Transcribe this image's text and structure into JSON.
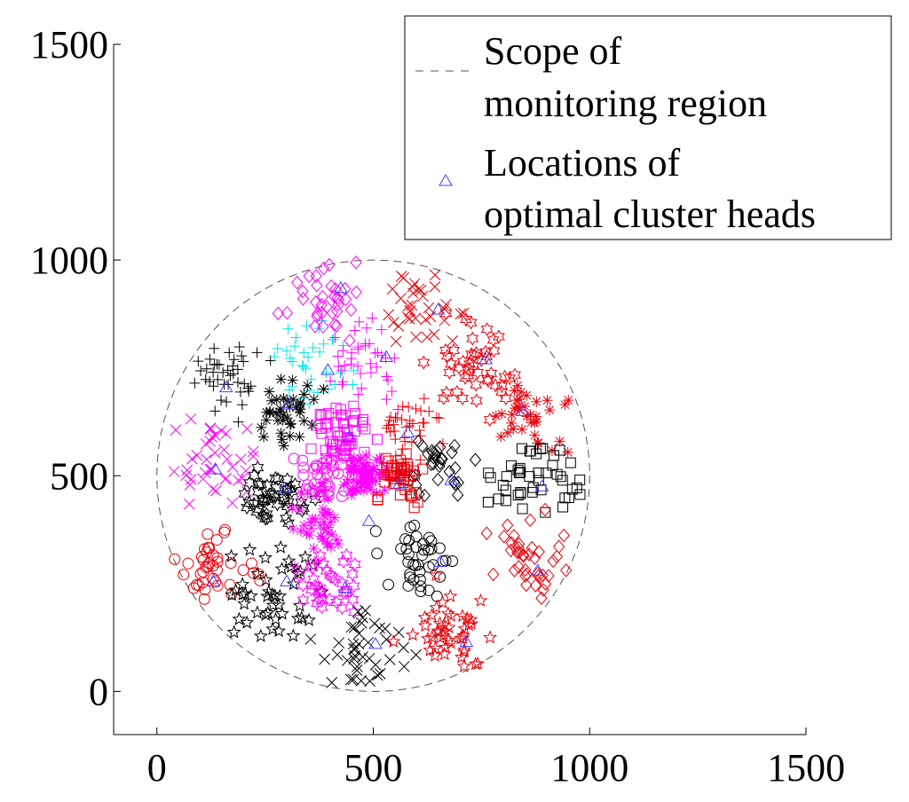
{
  "chart_data": {
    "type": "scatter",
    "title": "",
    "xlabel": "",
    "ylabel": "",
    "xlim": [
      -100,
      1500
    ],
    "ylim": [
      -100,
      1500
    ],
    "grid": false,
    "legend_position": "top-right",
    "x_ticks": [
      "0",
      "500",
      "1000",
      "1500"
    ],
    "y_ticks": [
      "0",
      "500",
      "1000",
      "1500"
    ],
    "legend": [
      {
        "label_line1": "Scope of",
        "label_line2": "monitoring region",
        "style": "dashed-line"
      },
      {
        "label_line1": "Locations of",
        "label_line2": "optimal cluster heads",
        "style": "triangle"
      }
    ],
    "region": {
      "center_x": 500,
      "center_y": 500,
      "radius": 500
    },
    "colors": {
      "black": "#000000",
      "red": "#e8000b",
      "magenta": "#ff00ff",
      "cyan": "#00e5e5",
      "blue": "#4040ff",
      "boundary": "#555555"
    },
    "cluster_heads": [
      {
        "x": 425,
        "y": 935
      },
      {
        "x": 650,
        "y": 885
      },
      {
        "x": 395,
        "y": 745
      },
      {
        "x": 530,
        "y": 775
      },
      {
        "x": 760,
        "y": 770
      },
      {
        "x": 160,
        "y": 705
      },
      {
        "x": 305,
        "y": 665
      },
      {
        "x": 845,
        "y": 650
      },
      {
        "x": 445,
        "y": 590
      },
      {
        "x": 580,
        "y": 600
      },
      {
        "x": 135,
        "y": 515
      },
      {
        "x": 680,
        "y": 490
      },
      {
        "x": 890,
        "y": 475
      },
      {
        "x": 295,
        "y": 470
      },
      {
        "x": 560,
        "y": 480
      },
      {
        "x": 490,
        "y": 395
      },
      {
        "x": 880,
        "y": 280
      },
      {
        "x": 130,
        "y": 255
      },
      {
        "x": 300,
        "y": 255
      },
      {
        "x": 435,
        "y": 240
      },
      {
        "x": 655,
        "y": 300
      },
      {
        "x": 715,
        "y": 115
      },
      {
        "x": 505,
        "y": 110
      }
    ],
    "clusters": [
      {
        "color": "black",
        "marker": "plus",
        "center_x": 150,
        "center_y": 730,
        "spread": 70,
        "count": 40
      },
      {
        "color": "cyan",
        "marker": "plus",
        "center_x": 360,
        "center_y": 760,
        "spread": 65,
        "count": 35
      },
      {
        "color": "magenta",
        "marker": "diamond",
        "center_x": 390,
        "center_y": 920,
        "spread": 60,
        "count": 35
      },
      {
        "color": "magenta",
        "marker": "plus",
        "center_x": 480,
        "center_y": 760,
        "spread": 70,
        "count": 40
      },
      {
        "color": "red",
        "marker": "x",
        "center_x": 620,
        "center_y": 880,
        "spread": 60,
        "count": 35
      },
      {
        "color": "red",
        "marker": "hexagram",
        "center_x": 740,
        "center_y": 750,
        "spread": 70,
        "count": 45
      },
      {
        "color": "red",
        "marker": "asterisk",
        "center_x": 860,
        "center_y": 640,
        "spread": 60,
        "count": 35
      },
      {
        "color": "black",
        "marker": "asterisk",
        "center_x": 290,
        "center_y": 640,
        "spread": 55,
        "count": 40
      },
      {
        "color": "magenta",
        "marker": "x",
        "center_x": 120,
        "center_y": 520,
        "spread": 80,
        "count": 40
      },
      {
        "color": "magenta",
        "marker": "square",
        "center_x": 430,
        "center_y": 600,
        "spread": 45,
        "count": 55
      },
      {
        "color": "red",
        "marker": "plus",
        "center_x": 580,
        "center_y": 610,
        "spread": 50,
        "count": 35
      },
      {
        "color": "black",
        "marker": "diamond",
        "center_x": 650,
        "center_y": 520,
        "spread": 55,
        "count": 30
      },
      {
        "color": "black",
        "marker": "square",
        "center_x": 880,
        "center_y": 500,
        "spread": 65,
        "count": 45
      },
      {
        "color": "black",
        "marker": "hexagram",
        "center_x": 280,
        "center_y": 450,
        "spread": 55,
        "count": 45
      },
      {
        "color": "magenta",
        "marker": "circle",
        "center_x": 380,
        "center_y": 490,
        "spread": 45,
        "count": 40
      },
      {
        "color": "magenta",
        "marker": "asterisk",
        "center_x": 480,
        "center_y": 500,
        "spread": 35,
        "count": 70
      },
      {
        "color": "red",
        "marker": "square",
        "center_x": 560,
        "center_y": 500,
        "spread": 40,
        "count": 50
      },
      {
        "color": "magenta",
        "marker": "asterisk",
        "center_x": 380,
        "center_y": 380,
        "spread": 50,
        "count": 40
      },
      {
        "color": "red",
        "marker": "circle",
        "center_x": 130,
        "center_y": 280,
        "spread": 75,
        "count": 40
      },
      {
        "color": "black",
        "marker": "star",
        "center_x": 280,
        "center_y": 230,
        "spread": 70,
        "count": 45
      },
      {
        "color": "magenta",
        "marker": "hexagram",
        "center_x": 400,
        "center_y": 260,
        "spread": 55,
        "count": 35
      },
      {
        "color": "black",
        "marker": "circle",
        "center_x": 610,
        "center_y": 300,
        "spread": 60,
        "count": 40
      },
      {
        "color": "red",
        "marker": "diamond",
        "center_x": 850,
        "center_y": 300,
        "spread": 70,
        "count": 40
      },
      {
        "color": "black",
        "marker": "x",
        "center_x": 470,
        "center_y": 100,
        "spread": 65,
        "count": 40
      },
      {
        "color": "red",
        "marker": "star",
        "center_x": 680,
        "center_y": 130,
        "spread": 70,
        "count": 45
      }
    ]
  }
}
